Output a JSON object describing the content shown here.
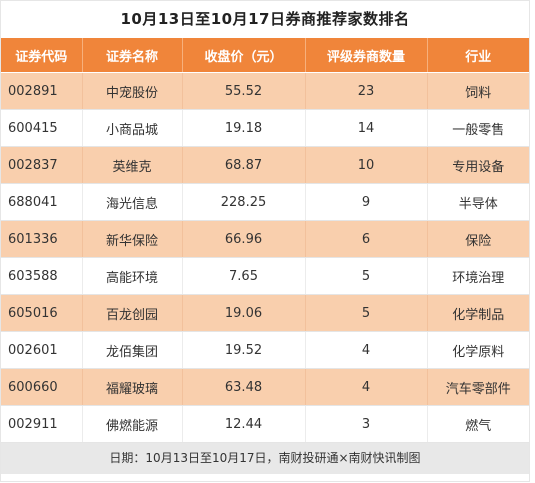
{
  "title": "10月13日至10月17日券商推荐家数排名",
  "headers": [
    "证券代码",
    "证券名称",
    "收盘价（元）",
    "评级券商数量",
    "行业"
  ],
  "rows": [
    {
      "code": "002891",
      "name": "中宠股份",
      "price": "55.52",
      "count": "23",
      "industry": "饲料"
    },
    {
      "code": "600415",
      "name": "小商品城",
      "price": "19.18",
      "count": "14",
      "industry": "一般零售"
    },
    {
      "code": "002837",
      "name": "英维克",
      "price": "68.87",
      "count": "10",
      "industry": "专用设备"
    },
    {
      "code": "688041",
      "name": "海光信息",
      "price": "228.25",
      "count": "9",
      "industry": "半导体"
    },
    {
      "code": "601336",
      "name": "新华保险",
      "price": "66.96",
      "count": "6",
      "industry": "保险"
    },
    {
      "code": "603588",
      "name": "高能环境",
      "price": "7.65",
      "count": "5",
      "industry": "环境治理"
    },
    {
      "code": "605016",
      "name": "百龙创园",
      "price": "19.06",
      "count": "5",
      "industry": "化学制品"
    },
    {
      "code": "002601",
      "name": "龙佰集团",
      "price": "19.52",
      "count": "4",
      "industry": "化学原料"
    },
    {
      "code": "600660",
      "name": "福耀玻璃",
      "price": "63.48",
      "count": "4",
      "industry": "汽车零部件"
    },
    {
      "code": "002911",
      "name": "佛燃能源",
      "price": "12.44",
      "count": "3",
      "industry": "燃气"
    }
  ],
  "footer": "日期：10月13日至10月17日，南财投研通×南财快讯制图",
  "colors": {
    "header_bg": "#f0853a",
    "stripe_bg": "#f9cfad",
    "footer_bg": "#e8e8e8"
  }
}
